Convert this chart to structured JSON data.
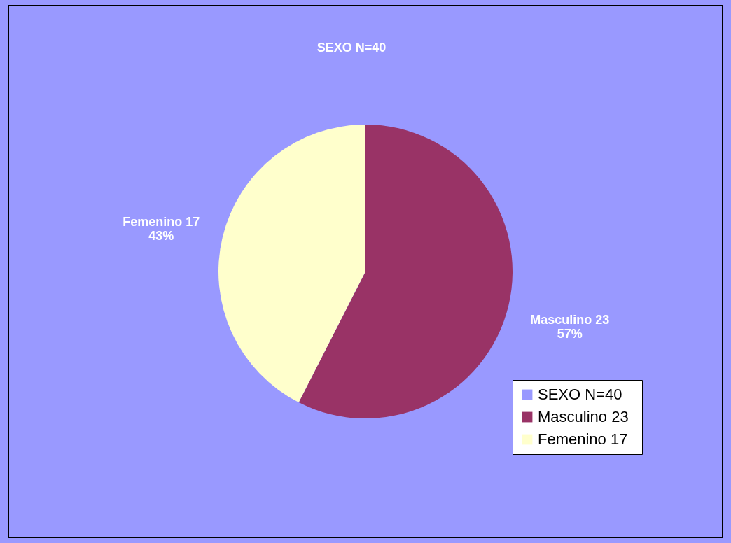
{
  "chart_data": {
    "type": "pie",
    "title": "SEXO    N=40",
    "categories": [
      "SEXO    N=40",
      "Masculino 23",
      "Femenino 17"
    ],
    "values": [
      0,
      23,
      17
    ],
    "colors": [
      "#9999ff",
      "#993366",
      "#ffffcc"
    ],
    "value_labels": [
      null,
      "Masculino 23\n57%",
      "Femenino 17\n43%"
    ],
    "legend": "bottom right"
  }
}
